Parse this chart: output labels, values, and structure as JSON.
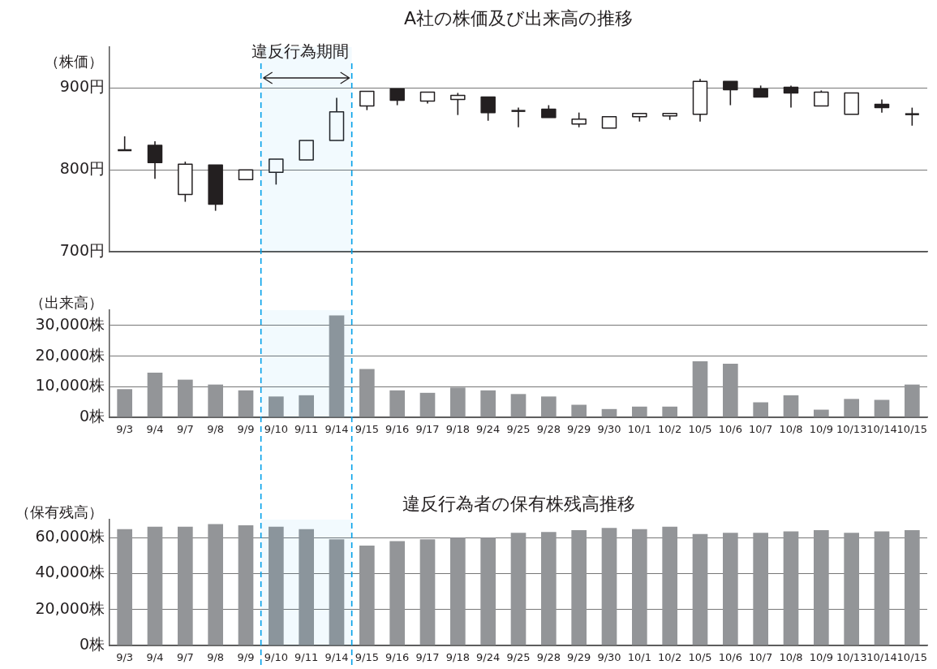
{
  "chart_data": [
    {
      "type": "candlestick",
      "title": "A社の株価及び出来高の推移",
      "ylabel": "（株価）",
      "categories": [
        "9/3",
        "9/4",
        "9/7",
        "9/8",
        "9/9",
        "9/10",
        "9/11",
        "9/14",
        "9/15",
        "9/16",
        "9/17",
        "9/18",
        "9/24",
        "9/25",
        "9/28",
        "9/29",
        "9/30",
        "10/1",
        "10/2",
        "10/5",
        "10/6",
        "10/7",
        "10/8",
        "10/9",
        "10/13",
        "10/14",
        "10/15"
      ],
      "ohlc": [
        [
          824,
          841,
          824,
          824
        ],
        [
          830,
          835,
          789,
          809
        ],
        [
          770,
          810,
          761,
          807
        ],
        [
          806,
          806,
          750,
          758
        ],
        [
          788,
          800,
          788,
          800
        ],
        [
          797,
          813,
          782,
          813
        ],
        [
          812,
          836,
          812,
          836
        ],
        [
          836,
          888,
          836,
          871
        ],
        [
          878,
          896,
          873,
          896
        ],
        [
          899,
          899,
          879,
          885
        ],
        [
          884,
          895,
          881,
          895
        ],
        [
          886,
          894,
          867,
          891
        ],
        [
          889,
          889,
          860,
          870
        ],
        [
          872,
          876,
          852,
          872
        ],
        [
          874,
          879,
          864,
          864
        ],
        [
          856,
          870,
          852,
          862
        ],
        [
          851,
          865,
          851,
          865
        ],
        [
          865,
          869,
          859,
          869
        ],
        [
          866,
          869,
          861,
          869
        ],
        [
          868,
          911,
          859,
          908
        ],
        [
          908,
          908,
          879,
          898
        ],
        [
          899,
          903,
          889,
          889
        ],
        [
          901,
          903,
          876,
          894
        ],
        [
          878,
          897,
          878,
          895
        ],
        [
          868,
          894,
          868,
          894
        ],
        [
          880,
          886,
          870,
          876
        ],
        [
          868,
          876,
          854,
          868
        ]
      ],
      "ylim": [
        700,
        950
      ],
      "yticks": [
        {
          "value": 700,
          "label": "700円"
        },
        {
          "value": 800,
          "label": "800円"
        },
        {
          "value": 900,
          "label": "900円"
        }
      ],
      "grid": "y",
      "tick_labels": "y",
      "bands": [
        {
          "axis": "x",
          "from": "9/10",
          "to": "9/14",
          "label": "違反行為期間",
          "color": "#00a0e9"
        }
      ]
    },
    {
      "type": "bar",
      "ylabel": "（出来高）",
      "categories": [
        "9/3",
        "9/4",
        "9/7",
        "9/8",
        "9/9",
        "9/10",
        "9/11",
        "9/14",
        "9/15",
        "9/16",
        "9/17",
        "9/18",
        "9/24",
        "9/25",
        "9/28",
        "9/29",
        "9/30",
        "10/1",
        "10/2",
        "10/5",
        "10/6",
        "10/7",
        "10/8",
        "10/9",
        "10/13",
        "10/14",
        "10/15"
      ],
      "values": [
        9200,
        14600,
        12300,
        10700,
        8800,
        6800,
        7200,
        33300,
        15800,
        8800,
        8000,
        9700,
        8800,
        7600,
        6800,
        4100,
        2700,
        3500,
        3500,
        18300,
        17500,
        4900,
        7200,
        2500,
        6000,
        5700,
        10700
      ],
      "color": "#939598",
      "ylim": [
        0,
        35000
      ],
      "yticks": [
        {
          "value": 0,
          "label": "0株"
        },
        {
          "value": 10000,
          "label": "10,000株"
        },
        {
          "value": 20000,
          "label": "20,000株"
        },
        {
          "value": 30000,
          "label": "30,000株"
        }
      ],
      "grid": "y",
      "bands": [
        {
          "axis": "x",
          "from": "9/10",
          "to": "9/14",
          "color": "#00a0e9"
        }
      ]
    },
    {
      "type": "bar",
      "title": "違反行為者の保有株残高推移",
      "ylabel": "（保有残高）",
      "categories": [
        "9/3",
        "9/4",
        "9/7",
        "9/8",
        "9/9",
        "9/10",
        "9/11",
        "9/14",
        "9/15",
        "9/16",
        "9/17",
        "9/18",
        "9/24",
        "9/25",
        "9/28",
        "9/29",
        "9/30",
        "10/1",
        "10/2",
        "10/5",
        "10/6",
        "10/7",
        "10/8",
        "10/9",
        "10/13",
        "10/14",
        "10/15"
      ],
      "values": [
        64700,
        66100,
        66100,
        67500,
        66800,
        66100,
        64700,
        59000,
        55600,
        58000,
        59000,
        60000,
        60000,
        62700,
        63100,
        64100,
        65400,
        64700,
        66100,
        62000,
        62700,
        62700,
        63400,
        64100,
        62700,
        63400,
        64100
      ],
      "color": "#939598",
      "ylim": [
        0,
        70000
      ],
      "yticks": [
        {
          "value": 0,
          "label": "0株"
        },
        {
          "value": 20000,
          "label": "20,000株"
        },
        {
          "value": 40000,
          "label": "40,000株"
        },
        {
          "value": 60000,
          "label": "60,000株"
        }
      ],
      "grid": "y",
      "bands": [
        {
          "axis": "x",
          "from": "9/10",
          "to": "9/14",
          "color": "#00a0e9"
        }
      ]
    }
  ]
}
